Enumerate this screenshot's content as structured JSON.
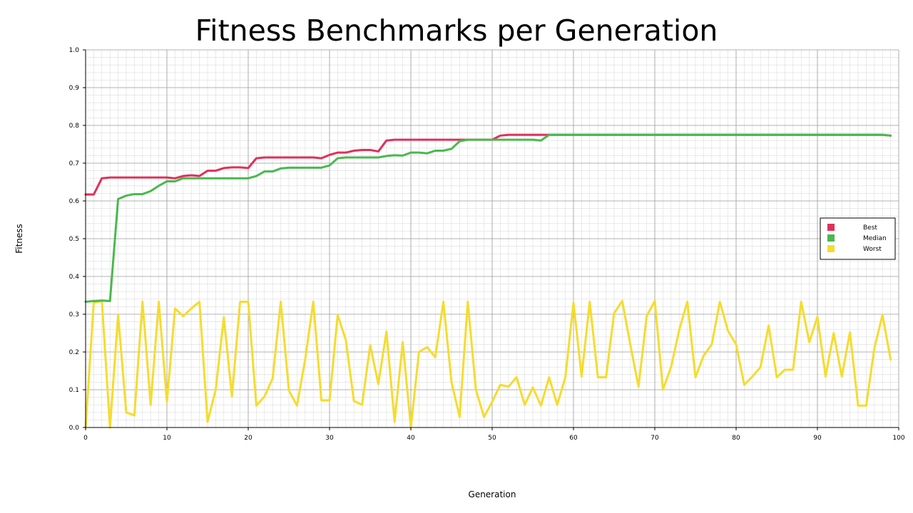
{
  "chart_data": {
    "type": "line",
    "title": "Fitness Benchmarks per Generation",
    "xlabel": "Generation",
    "ylabel": "Fitness",
    "xlim": [
      0,
      100
    ],
    "ylim": [
      0.0,
      1.0
    ],
    "x_ticks": [
      "0",
      "10",
      "20",
      "30",
      "40",
      "50",
      "60",
      "70",
      "80",
      "90",
      "100"
    ],
    "y_ticks": [
      "0.0",
      "0.1",
      "0.2",
      "0.3",
      "0.4",
      "0.5",
      "0.6",
      "0.7",
      "0.8",
      "0.9",
      "1.0"
    ],
    "grid": true,
    "legend_position": "right",
    "series": [
      {
        "name": "Best",
        "color": "#e0305a",
        "values": [
          0.617,
          0.617,
          0.66,
          0.662,
          0.662,
          0.662,
          0.662,
          0.662,
          0.662,
          0.662,
          0.662,
          0.66,
          0.666,
          0.668,
          0.666,
          0.68,
          0.68,
          0.687,
          0.689,
          0.689,
          0.687,
          0.713,
          0.715,
          0.715,
          0.715,
          0.715,
          0.715,
          0.715,
          0.715,
          0.713,
          0.722,
          0.728,
          0.728,
          0.733,
          0.735,
          0.735,
          0.731,
          0.76,
          0.762,
          0.762,
          0.762,
          0.762,
          0.762,
          0.762,
          0.762,
          0.762,
          0.762,
          0.762,
          0.762,
          0.762,
          0.762,
          0.773,
          0.775,
          0.775,
          0.775,
          0.775,
          0.775,
          0.775,
          0.775,
          0.775,
          0.775,
          0.775,
          0.775,
          0.775,
          0.775,
          0.775,
          0.775,
          0.775,
          0.775,
          0.775,
          0.775,
          0.775,
          0.775,
          0.775,
          0.775,
          0.775,
          0.775,
          0.775,
          0.775,
          0.775,
          0.775,
          0.775,
          0.775,
          0.775,
          0.775,
          0.775,
          0.775,
          0.775,
          0.775,
          0.775,
          0.775,
          0.775,
          0.775,
          0.775,
          0.775,
          0.775,
          0.775,
          0.775,
          0.775,
          0.773
        ]
      },
      {
        "name": "Median",
        "color": "#4ab84e",
        "values": [
          0.333,
          0.335,
          0.336,
          0.335,
          0.605,
          0.614,
          0.618,
          0.618,
          0.626,
          0.64,
          0.652,
          0.652,
          0.66,
          0.66,
          0.66,
          0.66,
          0.66,
          0.66,
          0.66,
          0.66,
          0.66,
          0.666,
          0.678,
          0.678,
          0.686,
          0.688,
          0.688,
          0.688,
          0.688,
          0.688,
          0.694,
          0.713,
          0.715,
          0.715,
          0.715,
          0.715,
          0.715,
          0.719,
          0.721,
          0.72,
          0.728,
          0.728,
          0.726,
          0.733,
          0.733,
          0.738,
          0.758,
          0.762,
          0.762,
          0.762,
          0.762,
          0.762,
          0.762,
          0.762,
          0.762,
          0.762,
          0.76,
          0.775,
          0.775,
          0.775,
          0.775,
          0.775,
          0.775,
          0.775,
          0.775,
          0.775,
          0.775,
          0.775,
          0.775,
          0.775,
          0.775,
          0.775,
          0.775,
          0.775,
          0.775,
          0.775,
          0.775,
          0.775,
          0.775,
          0.775,
          0.775,
          0.775,
          0.775,
          0.775,
          0.775,
          0.775,
          0.775,
          0.775,
          0.775,
          0.775,
          0.775,
          0.775,
          0.775,
          0.775,
          0.775,
          0.775,
          0.775,
          0.775,
          0.775,
          0.773
        ]
      },
      {
        "name": "Worst",
        "color": "#f5dc2e",
        "values": [
          0.0,
          0.33,
          0.335,
          0.0,
          0.298,
          0.04,
          0.032,
          0.333,
          0.06,
          0.333,
          0.068,
          0.315,
          0.295,
          0.315,
          0.333,
          0.015,
          0.1,
          0.292,
          0.082,
          0.333,
          0.333,
          0.058,
          0.082,
          0.13,
          0.333,
          0.098,
          0.058,
          0.18,
          0.333,
          0.072,
          0.072,
          0.298,
          0.232,
          0.07,
          0.06,
          0.218,
          0.115,
          0.254,
          0.015,
          0.226,
          0.0,
          0.2,
          0.213,
          0.186,
          0.333,
          0.12,
          0.028,
          0.333,
          0.1,
          0.028,
          0.068,
          0.113,
          0.108,
          0.133,
          0.06,
          0.106,
          0.058,
          0.133,
          0.06,
          0.133,
          0.33,
          0.135,
          0.333,
          0.133,
          0.133,
          0.303,
          0.335,
          0.218,
          0.108,
          0.295,
          0.335,
          0.1,
          0.16,
          0.258,
          0.333,
          0.133,
          0.19,
          0.22,
          0.333,
          0.256,
          0.22,
          0.113,
          0.135,
          0.16,
          0.27,
          0.133,
          0.153,
          0.153,
          0.333,
          0.226,
          0.293,
          0.135,
          0.25,
          0.135,
          0.252,
          0.058,
          0.058,
          0.21,
          0.298,
          0.18
        ]
      }
    ]
  }
}
